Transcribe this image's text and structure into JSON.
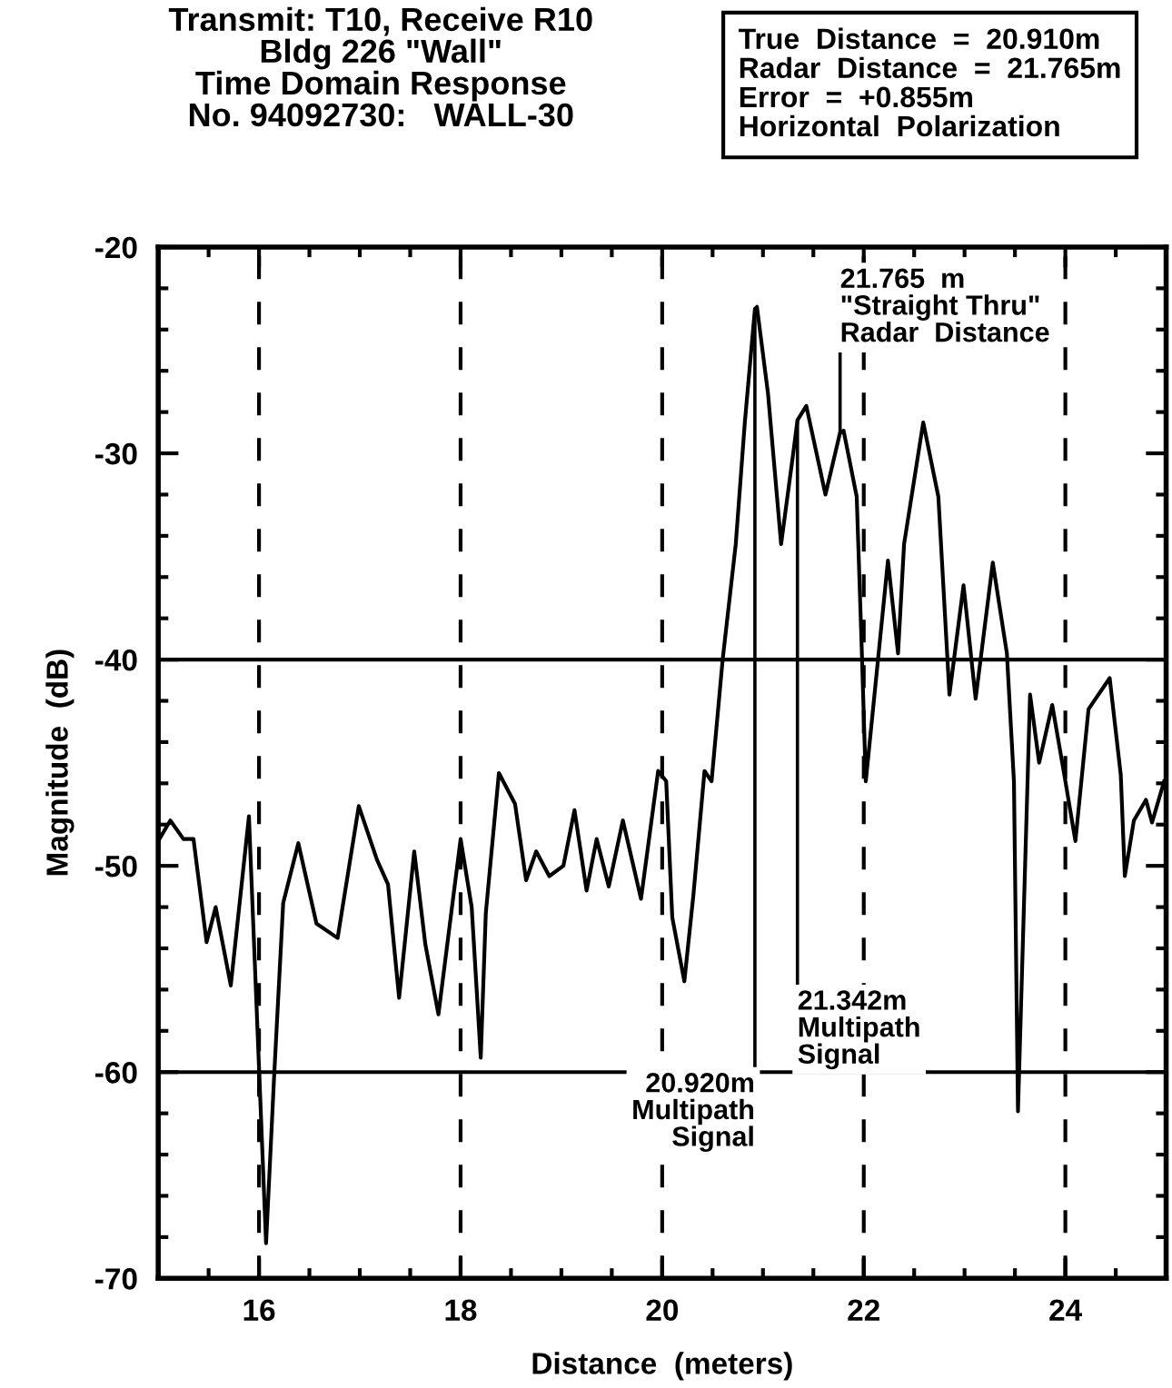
{
  "chart_data": {
    "type": "line",
    "title": "Transmit: T10, Receive R10\nBldg 226 \"Wall\"\nTime Domain Response\nNo. 94092730:   WALL-30",
    "xlabel": "Distance  (meters)",
    "ylabel": "Magnitude  (dB)",
    "x": [
      15.0,
      15.12,
      15.25,
      15.35,
      15.48,
      15.57,
      15.72,
      15.9,
      16.07,
      16.15,
      16.24,
      16.39,
      16.57,
      16.78,
      16.99,
      17.17,
      17.28,
      17.39,
      17.54,
      17.65,
      17.78,
      18.0,
      18.11,
      18.2,
      18.25,
      18.38,
      18.54,
      18.65,
      18.75,
      18.88,
      19.02,
      19.13,
      19.25,
      19.35,
      19.47,
      19.61,
      19.79,
      19.96,
      20.04,
      20.1,
      20.22,
      20.31,
      20.42,
      20.49,
      20.6,
      20.73,
      20.82,
      20.92,
      20.94,
      21.05,
      21.18,
      21.3,
      21.342,
      21.43,
      21.62,
      21.765,
      21.8,
      21.93,
      21.98,
      22.02,
      22.24,
      22.34,
      22.4,
      22.59,
      22.74,
      22.85,
      22.99,
      23.11,
      23.28,
      23.42,
      23.49,
      23.53,
      23.65,
      23.74,
      23.87,
      23.99,
      24.1,
      24.23,
      24.44,
      24.55,
      24.59,
      24.68,
      24.8,
      24.86,
      24.98
    ],
    "series": [
      {
        "color": "#000000",
        "values": [
          -48.8,
          -47.8,
          -48.7,
          -48.7,
          -53.7,
          -52.0,
          -55.8,
          -47.6,
          -68.3,
          -60.2,
          -51.8,
          -48.9,
          -52.8,
          -53.5,
          -47.1,
          -49.7,
          -50.9,
          -56.4,
          -49.3,
          -53.8,
          -57.2,
          -48.7,
          -52.0,
          -59.3,
          -52.3,
          -45.5,
          -47.0,
          -50.7,
          -49.3,
          -50.5,
          -50.0,
          -47.3,
          -51.2,
          -48.7,
          -51.0,
          -47.8,
          -51.6,
          -45.4,
          -45.9,
          -52.5,
          -55.6,
          -51.4,
          -45.4,
          -45.9,
          -40.0,
          -34.4,
          -28.5,
          -23.0,
          -22.9,
          -27.1,
          -34.4,
          -30.0,
          -28.4,
          -27.7,
          -32.0,
          -29.0,
          -28.9,
          -32.1,
          -39.5,
          -45.9,
          -35.2,
          -39.7,
          -34.4,
          -28.5,
          -32.1,
          -41.7,
          -36.4,
          -41.9,
          -35.3,
          -39.7,
          -45.9,
          -61.9,
          -41.7,
          -45.0,
          -42.2,
          -45.6,
          -48.8,
          -42.4,
          -40.9,
          -45.6,
          -50.5,
          -47.8,
          -46.8,
          -47.9,
          -45.9
        ]
      }
    ],
    "xlim": [
      15,
      25
    ],
    "ylim": [
      -70,
      -20
    ],
    "xticks": [
      16,
      18,
      20,
      22,
      24
    ],
    "yticks": [
      -70,
      -60,
      -50,
      -40,
      -30,
      -20
    ],
    "grid": false,
    "legend": false,
    "marker": "none",
    "line_style": "solid",
    "ref_lines": [
      {
        "axis": "y",
        "value": -40,
        "line_style": "solid",
        "color": "#000000"
      },
      {
        "axis": "y",
        "value": -60,
        "line_style": "solid",
        "color": "#000000"
      },
      {
        "axis": "x",
        "value": 16,
        "line_style": "dashed",
        "color": "#000000"
      },
      {
        "axis": "x",
        "value": 18,
        "line_style": "dashed",
        "color": "#000000"
      },
      {
        "axis": "x",
        "value": 20,
        "line_style": "dashed",
        "color": "#000000"
      },
      {
        "axis": "x",
        "value": 22,
        "line_style": "dashed",
        "color": "#000000"
      },
      {
        "axis": "x",
        "value": 24,
        "line_style": "dashed",
        "color": "#000000"
      }
    ],
    "annotations": [
      {
        "text": "20.920m\nMultipath\nSignal",
        "x": 20.92,
        "y": -23.0
      },
      {
        "text": "21.342m\nMultipath\nSignal",
        "x": 21.342,
        "y": -28.4
      },
      {
        "text": "21.765  m\n\"Straight Thru\"\nRadar  Distance",
        "x": 21.765,
        "y": -29.0
      },
      "True  Distance  =  20.910m\nRadar  Distance  =  21.765m\nError  =  +0.855m\nHorizontal  Polarization"
    ]
  }
}
